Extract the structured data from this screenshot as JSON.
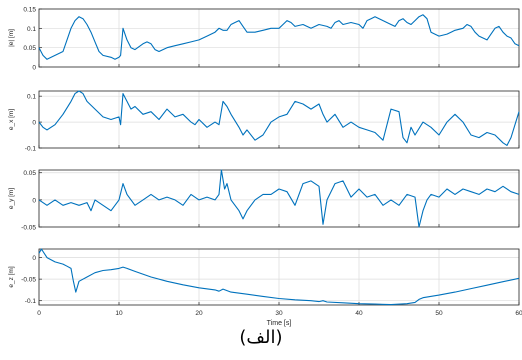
{
  "chart_data": [
    {
      "type": "line",
      "ylabel": "|e| [m]",
      "xlim": [
        0,
        60
      ],
      "ylim": [
        0,
        0.15
      ],
      "yticks": [
        "0",
        "0.05",
        "0.1",
        "0.15"
      ],
      "grid": true,
      "color": "#0072BD",
      "series": [
        {
          "x": [
            0,
            0.5,
            1,
            2,
            3,
            3.5,
            4,
            4.5,
            5,
            5.5,
            6,
            6.5,
            7,
            7.5,
            8,
            9,
            9.5,
            10,
            10.2,
            10.5,
            11,
            11.5,
            12,
            13,
            13.5,
            14,
            14.5,
            15,
            15.5,
            16,
            17,
            18,
            19,
            20,
            21,
            22,
            22.5,
            23,
            23.5,
            24,
            24.5,
            25,
            25.5,
            26,
            27,
            28,
            29,
            30,
            30.5,
            31,
            31.5,
            32,
            33,
            34,
            35,
            36,
            36.5,
            37,
            37.5,
            38,
            39,
            40,
            40.5,
            41,
            41.5,
            42,
            43,
            44,
            44.5,
            45,
            45.5,
            46,
            46.5,
            47,
            47.5,
            48,
            48.5,
            49,
            50,
            51,
            51.5,
            52,
            53,
            53.5,
            54,
            54.5,
            55,
            55.5,
            56,
            56.5,
            57,
            57.5,
            58,
            58.5,
            59,
            59.5,
            60
          ],
          "y": [
            0.05,
            0.03,
            0.02,
            0.03,
            0.04,
            0.07,
            0.1,
            0.12,
            0.13,
            0.125,
            0.11,
            0.09,
            0.065,
            0.04,
            0.03,
            0.025,
            0.02,
            0.025,
            0.03,
            0.1,
            0.07,
            0.05,
            0.045,
            0.06,
            0.065,
            0.06,
            0.045,
            0.04,
            0.045,
            0.05,
            0.055,
            0.06,
            0.065,
            0.07,
            0.08,
            0.09,
            0.1,
            0.095,
            0.095,
            0.11,
            0.115,
            0.12,
            0.105,
            0.09,
            0.09,
            0.095,
            0.1,
            0.1,
            0.11,
            0.12,
            0.115,
            0.105,
            0.11,
            0.1,
            0.11,
            0.105,
            0.1,
            0.115,
            0.12,
            0.11,
            0.115,
            0.11,
            0.1,
            0.12,
            0.125,
            0.13,
            0.12,
            0.11,
            0.105,
            0.12,
            0.125,
            0.115,
            0.11,
            0.12,
            0.13,
            0.135,
            0.125,
            0.09,
            0.08,
            0.085,
            0.09,
            0.095,
            0.1,
            0.11,
            0.105,
            0.09,
            0.08,
            0.075,
            0.07,
            0.085,
            0.1,
            0.105,
            0.09,
            0.08,
            0.075,
            0.06,
            0.055
          ]
        }
      ]
    },
    {
      "type": "line",
      "ylabel": "e_x [m]",
      "xlim": [
        0,
        60
      ],
      "ylim": [
        -0.1,
        0.12
      ],
      "yticks": [
        "-0.1",
        "0",
        "0.1"
      ],
      "grid": true,
      "color": "#0072BD",
      "series": [
        {
          "x": [
            0,
            0.5,
            1,
            2,
            3,
            4,
            4.5,
            5,
            5.5,
            6,
            7,
            8,
            9,
            10,
            10.2,
            10.5,
            11,
            11.5,
            12,
            13,
            14,
            15,
            16,
            17,
            18,
            19,
            19.5,
            20,
            21,
            22,
            22.5,
            23,
            23.5,
            24,
            25,
            25.5,
            26,
            27,
            28,
            29,
            30,
            31,
            32,
            33,
            34,
            35,
            35.5,
            36,
            37,
            38,
            39,
            40,
            41,
            42,
            43,
            44,
            45,
            45.5,
            46,
            46.5,
            47,
            48,
            49,
            50,
            51,
            52,
            53,
            54,
            55,
            56,
            57,
            58,
            58.5,
            59,
            60
          ],
          "y": [
            0,
            -0.02,
            -0.03,
            -0.01,
            0.03,
            0.08,
            0.11,
            0.12,
            0.11,
            0.08,
            0.05,
            0.02,
            0.01,
            0.02,
            -0.01,
            0.11,
            0.08,
            0.05,
            0.06,
            0.03,
            0.04,
            0.01,
            0.05,
            0.02,
            0.03,
            0.0,
            -0.01,
            0.01,
            -0.02,
            0.0,
            -0.01,
            0.08,
            0.06,
            0.03,
            -0.02,
            -0.05,
            -0.03,
            -0.07,
            -0.05,
            0.0,
            0.02,
            0.03,
            0.08,
            0.07,
            0.05,
            0.07,
            0.03,
            0.0,
            0.03,
            -0.02,
            0.0,
            -0.02,
            -0.03,
            -0.04,
            -0.07,
            0.05,
            0.04,
            -0.06,
            -0.08,
            -0.02,
            -0.05,
            0.0,
            -0.02,
            -0.05,
            0.0,
            0.03,
            0.0,
            -0.05,
            -0.06,
            -0.04,
            -0.05,
            -0.08,
            -0.09,
            -0.06,
            0.04
          ]
        }
      ]
    },
    {
      "type": "line",
      "ylabel": "e_y [m]",
      "xlim": [
        0,
        60
      ],
      "ylim": [
        -0.05,
        0.055
      ],
      "yticks": [
        "-0.05",
        "0",
        "0.05"
      ],
      "grid": true,
      "color": "#0072BD",
      "series": [
        {
          "x": [
            0,
            1,
            2,
            3,
            4,
            5,
            6,
            6.5,
            7,
            8,
            9,
            10,
            10.5,
            11,
            12,
            13,
            14,
            15,
            16,
            17,
            18,
            19,
            20,
            21,
            22,
            22.5,
            22.8,
            23.2,
            23.5,
            24,
            25,
            25.5,
            26,
            27,
            28,
            29,
            30,
            31,
            32,
            33,
            34,
            35,
            35.5,
            36,
            37,
            38,
            39,
            40,
            41,
            42,
            43,
            44,
            45,
            46,
            47,
            47.5,
            48,
            48.5,
            49,
            50,
            51,
            52,
            53,
            54,
            55,
            56,
            57,
            58,
            59,
            60
          ],
          "y": [
            0,
            -0.01,
            0.0,
            -0.01,
            -0.005,
            -0.01,
            -0.005,
            -0.02,
            0.0,
            -0.01,
            -0.02,
            0.0,
            0.03,
            0.01,
            -0.01,
            0.0,
            0.01,
            0.0,
            0.005,
            0.0,
            -0.01,
            0.01,
            0.0,
            0.005,
            0.0,
            0.01,
            0.055,
            0.02,
            0.03,
            0.0,
            -0.02,
            -0.035,
            -0.02,
            0.0,
            0.01,
            0.01,
            0.02,
            0.015,
            -0.01,
            0.03,
            0.035,
            0.025,
            -0.045,
            0.0,
            0.03,
            0.035,
            0.005,
            0.02,
            0.005,
            0.01,
            -0.01,
            0.0,
            -0.01,
            0.01,
            0.005,
            -0.05,
            -0.02,
            0.0,
            0.01,
            0.005,
            0.02,
            0.01,
            0.02,
            0.015,
            0.01,
            0.02,
            0.015,
            0.025,
            0.015,
            0.01
          ]
        }
      ]
    },
    {
      "type": "line",
      "ylabel": "e_z [m]",
      "xlabel": "Time [s]",
      "xlim": [
        0,
        60
      ],
      "xticks": [
        "0",
        "10",
        "20",
        "30",
        "40",
        "50",
        "60"
      ],
      "ylim": [
        -0.11,
        0.02
      ],
      "yticks": [
        "-0.1",
        "-0.05",
        "0"
      ],
      "grid": true,
      "color": "#0072BD",
      "series": [
        {
          "x": [
            0,
            0.3,
            1,
            2,
            3,
            3.5,
            4,
            4.3,
            4.6,
            5,
            6,
            7,
            8,
            9,
            10,
            10.5,
            11,
            12,
            14,
            16,
            18,
            20,
            22,
            22.5,
            23,
            24,
            26,
            28,
            30,
            32,
            34,
            35,
            35.5,
            36,
            38,
            40,
            42,
            44,
            46,
            47,
            47.5,
            48,
            50,
            52,
            54,
            56,
            58,
            60
          ],
          "y": [
            0.01,
            0.02,
            0.0,
            -0.01,
            -0.015,
            -0.02,
            -0.025,
            -0.055,
            -0.08,
            -0.055,
            -0.045,
            -0.035,
            -0.03,
            -0.028,
            -0.025,
            -0.022,
            -0.025,
            -0.032,
            -0.045,
            -0.055,
            -0.063,
            -0.07,
            -0.075,
            -0.078,
            -0.073,
            -0.08,
            -0.085,
            -0.09,
            -0.095,
            -0.098,
            -0.1,
            -0.102,
            -0.1,
            -0.103,
            -0.105,
            -0.107,
            -0.108,
            -0.109,
            -0.107,
            -0.104,
            -0.097,
            -0.093,
            -0.087,
            -0.08,
            -0.072,
            -0.064,
            -0.056,
            -0.048
          ]
        }
      ]
    }
  ],
  "caption": "(الف)"
}
